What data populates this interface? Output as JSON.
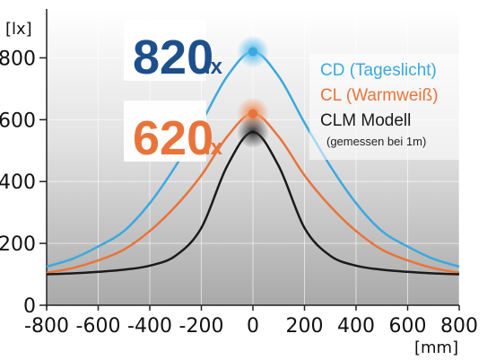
{
  "chart_data": {
    "type": "line",
    "title": "",
    "y_unit": "[lx]",
    "x_unit": "[mm]",
    "xlim": [
      -800,
      800
    ],
    "ylim": [
      0,
      900
    ],
    "x_ticks": [
      "-800",
      "-600",
      "-400",
      "-200",
      "0",
      "200",
      "400",
      "600",
      "800"
    ],
    "y_ticks": [
      "0",
      "200",
      "400",
      "600",
      "800"
    ],
    "grid": true,
    "legend_position": "top-right",
    "series": [
      {
        "name": "CD (Tageslicht)",
        "color": "#3aa9df",
        "x": [
          -800,
          -700,
          -600,
          -500,
          -400,
          -300,
          -200,
          -100,
          0,
          100,
          200,
          300,
          400,
          500,
          600,
          700,
          800
        ],
        "values": [
          125,
          150,
          190,
          240,
          330,
          450,
          590,
          740,
          820,
          740,
          590,
          450,
          330,
          240,
          190,
          150,
          125
        ]
      },
      {
        "name": "CL (Warmweiß)",
        "color": "#e8743b",
        "x": [
          -800,
          -700,
          -600,
          -500,
          -400,
          -300,
          -200,
          -100,
          0,
          100,
          200,
          300,
          400,
          500,
          600,
          700,
          800
        ],
        "values": [
          105,
          120,
          145,
          180,
          240,
          320,
          420,
          545,
          620,
          545,
          420,
          320,
          240,
          180,
          145,
          120,
          105
        ]
      },
      {
        "name": "CLM Modell",
        "color": "#1a1a1a",
        "x": [
          -800,
          -700,
          -600,
          -500,
          -400,
          -300,
          -200,
          -100,
          0,
          100,
          200,
          300,
          400,
          500,
          600,
          700,
          800
        ],
        "values": [
          100,
          103,
          108,
          115,
          128,
          160,
          250,
          450,
          560,
          450,
          250,
          160,
          128,
          115,
          108,
          103,
          100
        ]
      }
    ],
    "annotations": [
      {
        "text_main": "820",
        "text_unit": "lx",
        "color": "#1d4f8c",
        "series": 0
      },
      {
        "text_main": "620",
        "text_unit": "lx",
        "color": "#e8743b",
        "series": 1
      }
    ],
    "legend_note": "(gemessen bei 1m)"
  }
}
